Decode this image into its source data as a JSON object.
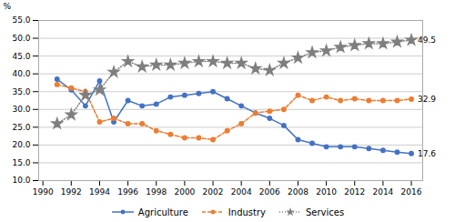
{
  "chart_data": {
    "type": "line",
    "x": [
      1991,
      1992,
      1993,
      1994,
      1995,
      1996,
      1997,
      1998,
      1999,
      2000,
      2001,
      2002,
      2003,
      2004,
      2005,
      2006,
      2007,
      2008,
      2009,
      2010,
      2011,
      2012,
      2013,
      2014,
      2015,
      2016
    ],
    "series": [
      {
        "name": "Agriculture",
        "color": "#4472C4",
        "marker": "circle",
        "line_style": "solid",
        "values": [
          38.5,
          35.5,
          31.0,
          38.0,
          26.5,
          32.5,
          31.0,
          31.5,
          33.5,
          34.0,
          34.5,
          35.0,
          33.0,
          31.0,
          29.0,
          27.5,
          25.5,
          21.5,
          20.5,
          19.5,
          19.5,
          19.5,
          19.0,
          18.5,
          18.0,
          17.6
        ]
      },
      {
        "name": "Industry",
        "color": "#ED7D31",
        "marker": "circle",
        "line_style": "dashed",
        "values": [
          37.0,
          36.0,
          35.0,
          26.5,
          27.5,
          26.0,
          26.0,
          24.0,
          23.0,
          22.0,
          22.0,
          21.5,
          24.0,
          26.0,
          29.0,
          29.5,
          30.0,
          34.0,
          32.5,
          33.5,
          32.5,
          33.0,
          32.5,
          32.5,
          32.5,
          32.9
        ]
      },
      {
        "name": "Services",
        "color": "#7F7F7F",
        "marker": "star",
        "line_style": "dotted",
        "values": [
          26.0,
          28.5,
          34.0,
          35.5,
          40.5,
          43.5,
          42.0,
          42.5,
          42.5,
          43.0,
          43.5,
          43.5,
          43.0,
          43.0,
          41.5,
          41.0,
          43.0,
          44.5,
          46.0,
          46.5,
          47.5,
          48.0,
          48.5,
          48.5,
          49.0,
          49.5
        ]
      }
    ],
    "ylabel": "%",
    "xlim": [
      1989.7,
      2016.8
    ],
    "xticks": [
      1990,
      1992,
      1994,
      1996,
      1998,
      2000,
      2002,
      2004,
      2006,
      2008,
      2010,
      2012,
      2014,
      2016
    ],
    "ylim": [
      10.0,
      55.0
    ],
    "yticks": [
      {
        "value": 10,
        "label": "10.0"
      },
      {
        "value": 15,
        "label": "15.0"
      },
      {
        "value": 20,
        "label": "20.0"
      },
      {
        "value": 25,
        "label": "25.0"
      },
      {
        "value": 30,
        "label": "30.0"
      },
      {
        "value": 35,
        "label": "35.0"
      },
      {
        "value": 40,
        "label": "40.0"
      },
      {
        "value": 45,
        "label": "45.0"
      },
      {
        "value": 50,
        "label": "50.0"
      },
      {
        "value": 55,
        "label": "55.0"
      }
    ],
    "grid": true,
    "legend": "bottom",
    "annotations": [
      {
        "text": "49.5",
        "x": 2016,
        "y": 49.5
      },
      {
        "text": "32.9",
        "x": 2016,
        "y": 32.9
      },
      {
        "text": "17.6",
        "x": 2016,
        "y": 17.6
      }
    ]
  }
}
